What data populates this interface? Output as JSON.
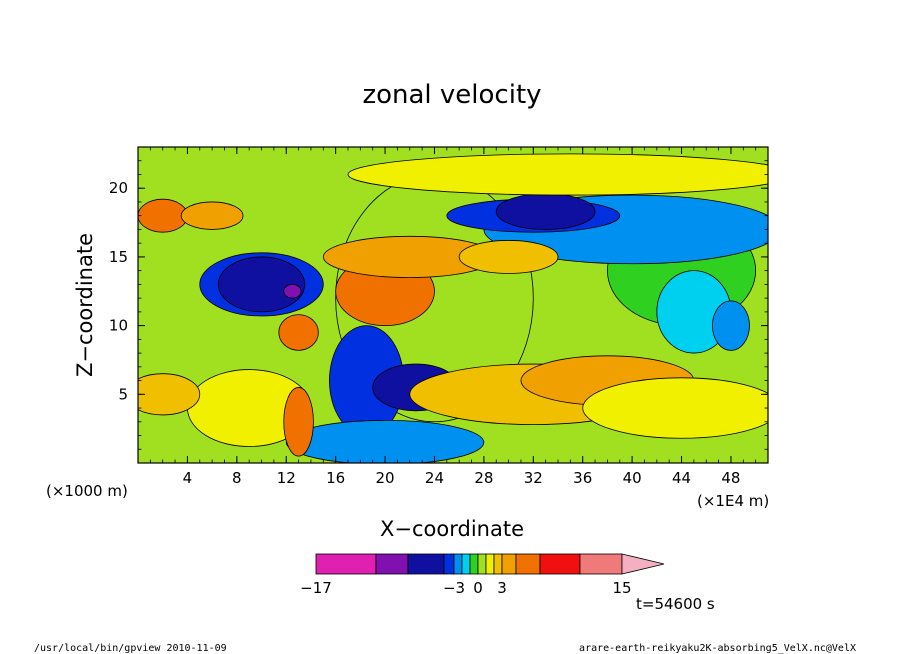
{
  "chart_data": {
    "type": "heatmap",
    "title": "zonal velocity",
    "xlabel": "X−coordinate",
    "ylabel": "Z−coordinate",
    "x_unit": "(×1000 m)",
    "x_scale": "(×1E4 m)",
    "time_label": "t=54600 s",
    "xlim": [
      0,
      51
    ],
    "ylim": [
      0,
      23
    ],
    "xticks": [
      "4",
      "8",
      "12",
      "16",
      "20",
      "24",
      "28",
      "32",
      "36",
      "40",
      "44",
      "48"
    ],
    "yticks": [
      "5",
      "10",
      "15",
      "20"
    ],
    "colorbar": {
      "levels": [
        -17,
        -15,
        -10,
        -5,
        -3,
        -2,
        -1,
        0,
        1,
        2,
        3,
        5,
        10,
        15
      ],
      "colors": [
        "#e020b0",
        "#8010b0",
        "#1010a0",
        "#0030e0",
        "#0090f0",
        "#00d0f0",
        "#30d020",
        "#a0e020",
        "#f0f000",
        "#f0c000",
        "#f0a000",
        "#f07000",
        "#f01010",
        "#f07a7a"
      ],
      "tick_labels": [
        "−17",
        "−3",
        "0",
        "3",
        "15"
      ],
      "extend": "max"
    },
    "regions": [
      {
        "x": 24,
        "z": 12,
        "value": 0
      },
      {
        "x": 44,
        "z": 14,
        "value": -1
      },
      {
        "x": 45,
        "z": 11,
        "value": -2
      },
      {
        "x": 48,
        "z": 10,
        "value": -3
      },
      {
        "x": 40,
        "z": 17,
        "value": -3
      },
      {
        "x": 32,
        "z": 18,
        "value": -5
      },
      {
        "x": 33,
        "z": 18.3,
        "value": -10
      },
      {
        "x": 10,
        "z": 13,
        "value": -5
      },
      {
        "x": 10,
        "z": 13,
        "value": -10
      },
      {
        "x": 12.5,
        "z": 12.5,
        "value": -15
      },
      {
        "x": 18.5,
        "z": 6,
        "value": -5
      },
      {
        "x": 22.5,
        "z": 5.5,
        "value": -10
      },
      {
        "x": 20,
        "z": 12.5,
        "value": 5
      },
      {
        "x": 20,
        "z": 1.5,
        "value": -3
      },
      {
        "x": 32,
        "z": 5,
        "value": 2
      },
      {
        "x": 38,
        "z": 6,
        "value": 3
      },
      {
        "x": 44,
        "z": 4,
        "value": 1
      },
      {
        "x": 22,
        "z": 15,
        "value": 3
      },
      {
        "x": 9,
        "z": 4,
        "value": 1
      },
      {
        "x": 2,
        "z": 18,
        "value": 5
      },
      {
        "x": 6,
        "z": 18,
        "value": 3
      },
      {
        "x": 13,
        "z": 9.5,
        "value": 5
      },
      {
        "x": 13,
        "z": 3,
        "value": 5
      },
      {
        "x": 2,
        "z": 5,
        "value": 2
      },
      {
        "x": 35,
        "z": 21,
        "value": 1
      },
      {
        "x": 30,
        "z": 15,
        "value": 2
      }
    ]
  },
  "footer": {
    "left": "/usr/local/bin/gpview  2010-11-09",
    "right": "arare-earth-reikyaku2K-absorbing5_VelX.nc@VelX"
  }
}
